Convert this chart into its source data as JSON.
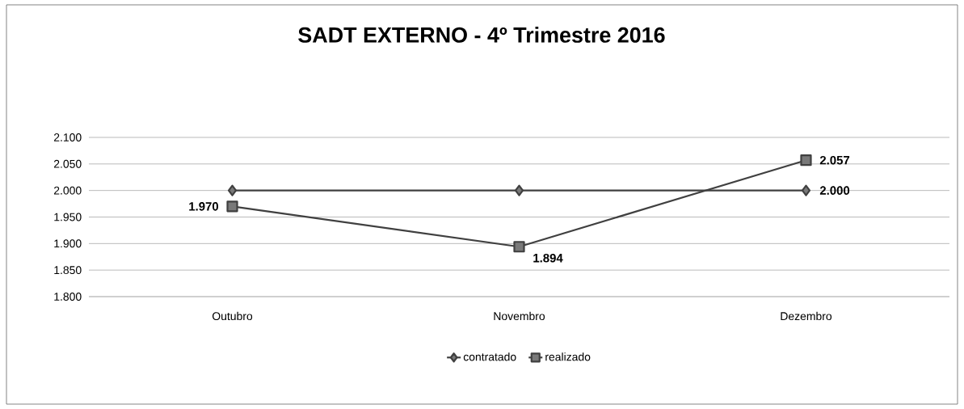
{
  "chart_data": {
    "type": "line",
    "title": "SADT EXTERNO - 4º Trimestre  2016",
    "categories": [
      "Outubro",
      "Novembro",
      "Dezembro"
    ],
    "series": [
      {
        "name": "contratado",
        "color": "#404040",
        "marker": "diamond",
        "values": [
          2000,
          2000,
          2000
        ],
        "value_labels": [
          null,
          null,
          "2.000"
        ]
      },
      {
        "name": "realizado",
        "color": "#404040",
        "marker": "square",
        "values": [
          1970,
          1894,
          2057
        ],
        "value_labels": [
          "1.970",
          "1.894",
          "2.057"
        ]
      }
    ],
    "ylim": [
      1800,
      2100
    ],
    "yticks": [
      {
        "value": 1800,
        "label": "1.800"
      },
      {
        "value": 1850,
        "label": "1.850"
      },
      {
        "value": 1900,
        "label": "1.900"
      },
      {
        "value": 1950,
        "label": "1.950"
      },
      {
        "value": 2000,
        "label": "2.000"
      },
      {
        "value": 2050,
        "label": "2.050"
      },
      {
        "value": 2100,
        "label": "2.100"
      }
    ],
    "grid": "y",
    "legend": "bottom",
    "line_style": "solid"
  }
}
